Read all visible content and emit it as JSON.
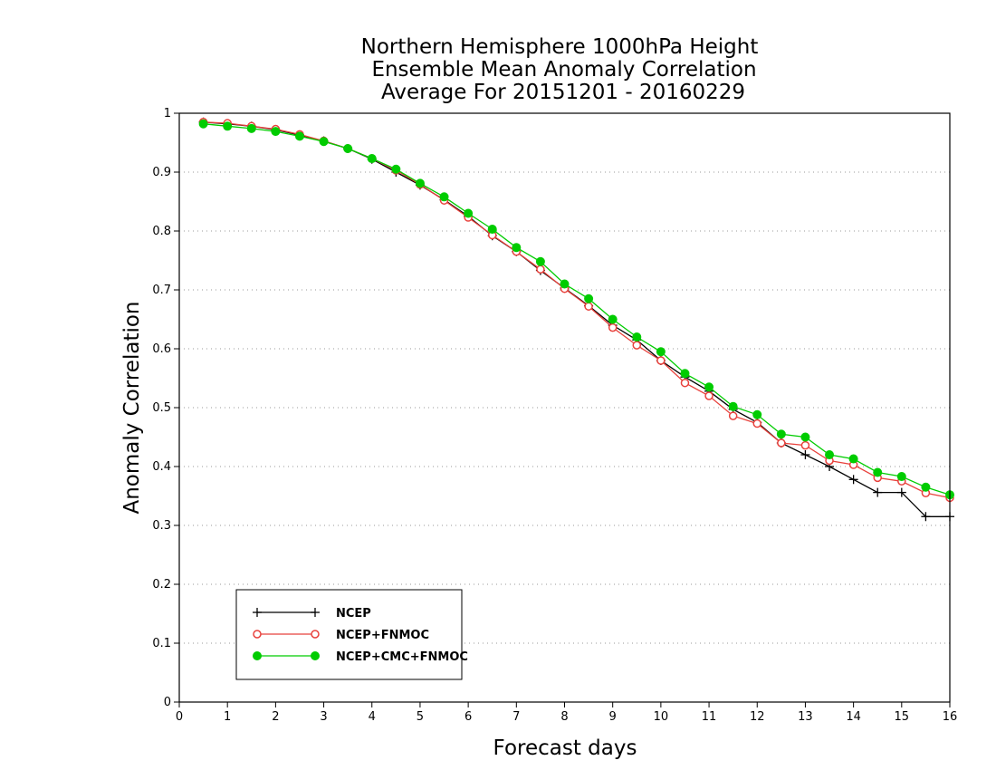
{
  "chart_data": {
    "type": "line",
    "title": [
      "Northern Hemisphere 1000hPa Height",
      "Ensemble Mean Anomaly Correlation",
      "Average For 20151201 - 20160229"
    ],
    "xlabel": "Forecast days",
    "ylabel": "Anomaly Correlation",
    "xlim": [
      0,
      16
    ],
    "ylim": [
      0,
      1
    ],
    "xticks": [
      "0",
      "1",
      "2",
      "3",
      "4",
      "5",
      "6",
      "7",
      "8",
      "9",
      "10",
      "11",
      "12",
      "13",
      "14",
      "15",
      "16"
    ],
    "yticks": [
      "0",
      "0.1",
      "0.2",
      "0.3",
      "0.4",
      "0.5",
      "0.6",
      "0.7",
      "0.8",
      "0.9",
      "1"
    ],
    "grid": "horizontal dotted",
    "legend_position": "bottom-left",
    "x": [
      0.5,
      1,
      1.5,
      2,
      2.5,
      3,
      3.5,
      4,
      4.5,
      5,
      5.5,
      6,
      6.5,
      7,
      7.5,
      8,
      8.5,
      9,
      9.5,
      10,
      10.5,
      11,
      11.5,
      12,
      12.5,
      13,
      13.5,
      14,
      14.5,
      15,
      15.5,
      16
    ],
    "series": [
      {
        "name": "NCEP",
        "color": "#000000",
        "marker": "plus",
        "values": [
          0.985,
          0.982,
          0.978,
          0.972,
          0.963,
          0.953,
          0.94,
          0.922,
          0.9,
          0.878,
          0.853,
          0.825,
          0.792,
          0.765,
          0.733,
          0.703,
          0.673,
          0.64,
          0.615,
          0.58,
          0.552,
          0.528,
          0.497,
          0.475,
          0.44,
          0.42,
          0.4,
          0.378,
          0.356,
          0.356,
          0.315,
          0.315
        ]
      },
      {
        "name": "NCEP+FNMOC",
        "color": "#e8413c",
        "marker": "open-circle",
        "values": [
          0.985,
          0.983,
          0.978,
          0.973,
          0.964,
          0.953,
          0.94,
          0.923,
          0.903,
          0.879,
          0.852,
          0.823,
          0.793,
          0.765,
          0.735,
          0.702,
          0.672,
          0.636,
          0.606,
          0.58,
          0.542,
          0.52,
          0.486,
          0.473,
          0.44,
          0.436,
          0.41,
          0.403,
          0.381,
          0.375,
          0.355,
          0.347
        ]
      },
      {
        "name": "NCEP+CMC+FNMOC",
        "color": "#00cc00",
        "marker": "filled-circle",
        "values": [
          0.982,
          0.978,
          0.974,
          0.969,
          0.961,
          0.952,
          0.94,
          0.923,
          0.905,
          0.881,
          0.858,
          0.83,
          0.803,
          0.772,
          0.748,
          0.71,
          0.685,
          0.65,
          0.62,
          0.595,
          0.558,
          0.535,
          0.502,
          0.488,
          0.455,
          0.45,
          0.42,
          0.413,
          0.39,
          0.383,
          0.365,
          0.352
        ]
      }
    ]
  }
}
